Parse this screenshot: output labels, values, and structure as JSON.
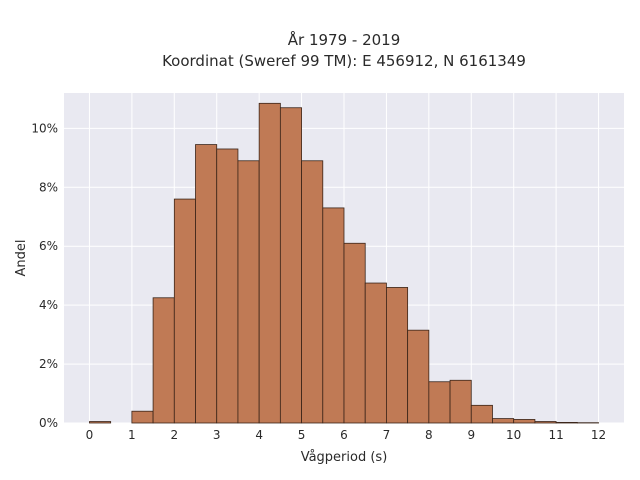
{
  "chart_data": {
    "type": "bar",
    "title_lines": [
      "År 1979 - 2019",
      "Koordinat (Sweref 99 TM): E 456912, N 6161349"
    ],
    "xlabel": "Vågperiod (s)",
    "ylabel": "Andel",
    "x_ticks": [
      0,
      1,
      2,
      3,
      4,
      5,
      6,
      7,
      8,
      9,
      10,
      11,
      12
    ],
    "y_ticks": [
      0,
      2,
      4,
      6,
      8,
      10
    ],
    "y_tick_suffix": "%",
    "xlim": [
      -0.6,
      12.6
    ],
    "ylim": [
      0,
      11.2
    ],
    "bin_width": 0.5,
    "bins": [
      {
        "start": 0.0,
        "value": 0.05
      },
      {
        "start": 0.5,
        "value": 0.0
      },
      {
        "start": 1.0,
        "value": 0.4
      },
      {
        "start": 1.5,
        "value": 4.25
      },
      {
        "start": 2.0,
        "value": 7.6
      },
      {
        "start": 2.5,
        "value": 9.45
      },
      {
        "start": 3.0,
        "value": 9.3
      },
      {
        "start": 3.5,
        "value": 8.9
      },
      {
        "start": 4.0,
        "value": 10.85
      },
      {
        "start": 4.5,
        "value": 10.7
      },
      {
        "start": 5.0,
        "value": 8.9
      },
      {
        "start": 5.5,
        "value": 7.3
      },
      {
        "start": 6.0,
        "value": 6.1
      },
      {
        "start": 6.5,
        "value": 4.75
      },
      {
        "start": 7.0,
        "value": 4.6
      },
      {
        "start": 7.5,
        "value": 3.15
      },
      {
        "start": 8.0,
        "value": 1.4
      },
      {
        "start": 8.5,
        "value": 1.45
      },
      {
        "start": 9.0,
        "value": 0.6
      },
      {
        "start": 9.5,
        "value": 0.15
      },
      {
        "start": 10.0,
        "value": 0.12
      },
      {
        "start": 10.5,
        "value": 0.05
      },
      {
        "start": 11.0,
        "value": 0.02
      },
      {
        "start": 11.5,
        "value": 0.01
      }
    ],
    "grid": true,
    "colors": {
      "bar_fill": "#c07a55",
      "bar_edge": "#3a2418",
      "plot_background": "#e9e9f1",
      "grid": "#ffffff"
    }
  }
}
